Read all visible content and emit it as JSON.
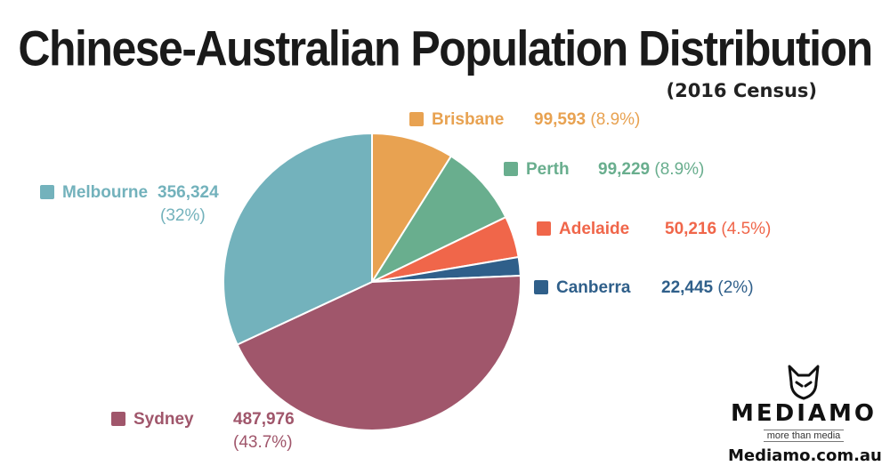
{
  "chart_data": {
    "type": "pie",
    "title": "Chinese-Australian Population Distribution",
    "subtitle": "(2016 Census)",
    "slices": [
      {
        "label": "Brisbane",
        "value": 99593,
        "value_text": "99,593",
        "percent_text": "(8.9%)",
        "color": "#E8A251"
      },
      {
        "label": "Perth",
        "value": 99229,
        "value_text": "99,229",
        "percent_text": "(8.9%)",
        "color": "#69AE8E"
      },
      {
        "label": "Adelaide",
        "value": 50216,
        "value_text": "50,216",
        "percent_text": "(4.5%)",
        "color": "#F0664A"
      },
      {
        "label": "Canberra",
        "value": 22445,
        "value_text": "22,445",
        "percent_text": "(2%)",
        "color": "#2F5F8A"
      },
      {
        "label": "Sydney",
        "value": 487976,
        "value_text": "487,976",
        "percent_text": "(43.7%)",
        "color": "#A0566B"
      },
      {
        "label": "Melbourne",
        "value": 356324,
        "value_text": "356,324",
        "percent_text": "(32%)",
        "color": "#73B2BC"
      }
    ]
  },
  "brand": {
    "name": "MEDIAMO",
    "tagline": "more than media",
    "site": "Mediamo.com.au"
  }
}
